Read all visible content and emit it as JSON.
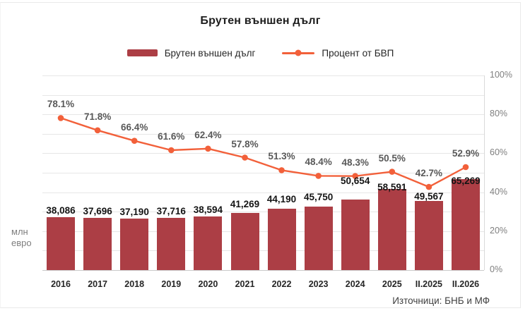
{
  "colors": {
    "bar": "#AC3E45",
    "line": "#F2603A",
    "grid": "#E6E6E6",
    "axis_line": "#C9C9C9",
    "plot_border": "#D9D9D9",
    "bar_label_text": "#141414",
    "pct_label_text": "#595959",
    "tick_text": "#7F7F7F"
  },
  "chart_data": {
    "type": "bar+line",
    "title": "Брутен външен дълг",
    "source": "Източници: БНБ и МФ",
    "legend_position": "top",
    "grid": true,
    "categories": [
      "2016",
      "2017",
      "2018",
      "2019",
      "2020",
      "2021",
      "2022",
      "2023",
      "2024",
      "2025",
      "II.2025",
      "II.2026"
    ],
    "series": [
      {
        "name": "Брутен външен дълг",
        "type": "bar",
        "values": [
          38086,
          37696,
          37190,
          37716,
          38594,
          41269,
          44190,
          45750,
          50654,
          58591,
          49567,
          65269
        ],
        "labels": [
          "38,086",
          "37,696",
          "37,190",
          "37,716",
          "38,594",
          "41,269",
          "44,190",
          "45,750",
          "50,654",
          "58,591",
          "49,567",
          "65,269"
        ]
      },
      {
        "name": "Процент от БВП",
        "type": "line",
        "axis": "right",
        "values": [
          78.1,
          71.8,
          66.4,
          61.6,
          62.4,
          57.8,
          51.3,
          48.4,
          48.3,
          50.5,
          42.7,
          52.9
        ],
        "labels": [
          "78.1%",
          "71.8%",
          "66.4%",
          "61.6%",
          "62.4%",
          "57.8%",
          "51.3%",
          "48.4%",
          "48.3%",
          "50.5%",
          "42.7%",
          "52.9%"
        ]
      }
    ],
    "bar_axis": {
      "unit": "млн евро",
      "min": 0,
      "max_implied": 140000,
      "labels_visible": false
    },
    "right_axis": {
      "min": 0,
      "max": 100,
      "tick_step_pct": 20,
      "grid_step_pct": 10,
      "ticks": [
        "0%",
        "20%",
        "40%",
        "60%",
        "80%",
        "100%"
      ]
    }
  }
}
